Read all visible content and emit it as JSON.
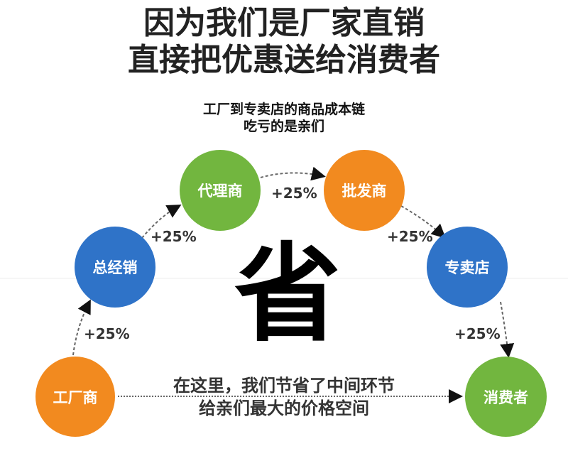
{
  "title": {
    "line1": "因为我们是厂家直销",
    "line2": "直接把优惠送给消费者"
  },
  "subtitle": {
    "line1": "工厂到专卖店的商品成本链",
    "line2": "吃亏的是亲们"
  },
  "nodes": [
    {
      "label": "工厂商",
      "color": "#f28a1f"
    },
    {
      "label": "总经销",
      "color": "#2f73c8"
    },
    {
      "label": "代理商",
      "color": "#72b63f"
    },
    {
      "label": "批发商",
      "color": "#f28a1f"
    },
    {
      "label": "专卖店",
      "color": "#2f73c8"
    },
    {
      "label": "消费者",
      "color": "#72b63f"
    }
  ],
  "markups": [
    "+25%",
    "+25%",
    "+25%",
    "+25%",
    "+25%"
  ],
  "center_char": "省",
  "note": {
    "line1": "在这里，我们节省了中间环节",
    "line2": "给亲们最大的价格空间"
  }
}
